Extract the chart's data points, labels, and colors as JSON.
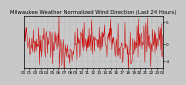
{
  "title": "Milwaukee Weather Normalized Wind Direction (Last 24 Hours)",
  "background_color": "#c8c8c8",
  "plot_bg_color": "#c8c8c8",
  "line_color": "#cc0000",
  "grid_color": "#aaaaaa",
  "ylim": [
    -5.5,
    6.5
  ],
  "yticks": [
    5,
    0,
    -4
  ],
  "ytick_labels": [
    "5",
    "0",
    "-4"
  ],
  "n_points": 288,
  "seed": 42,
  "title_fontsize": 3.8,
  "tick_fontsize": 3.0,
  "linewidth": 0.35
}
